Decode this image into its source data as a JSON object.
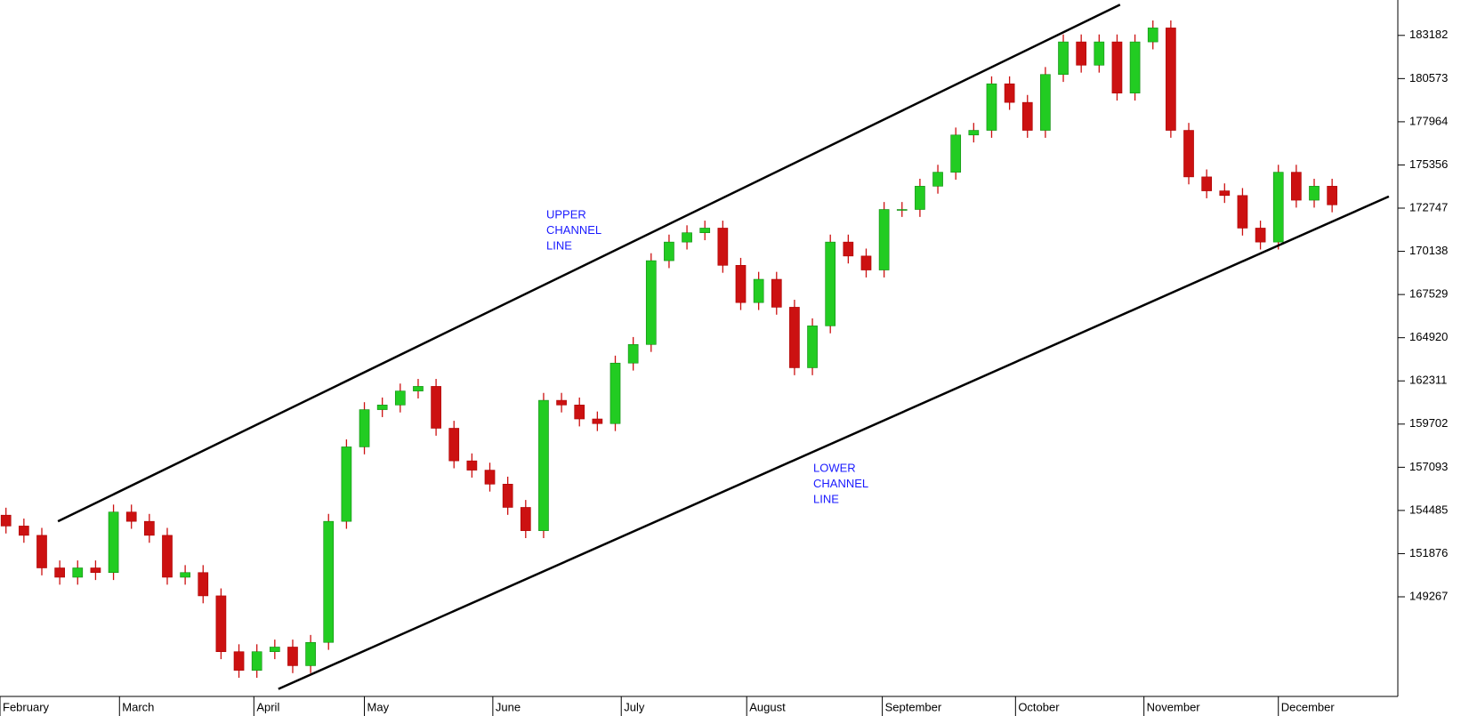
{
  "chart_data": {
    "type": "candlestick",
    "x": [
      1,
      4,
      7,
      10,
      13,
      16,
      19,
      22,
      25,
      28,
      31,
      34,
      37,
      40,
      43,
      46,
      49,
      52,
      55,
      58,
      61,
      64,
      67,
      70,
      73,
      76,
      79,
      82,
      85,
      88,
      91,
      94,
      97,
      100,
      103,
      106,
      109,
      112,
      115,
      118,
      121,
      124,
      127,
      130,
      133,
      136,
      139,
      142,
      145,
      148,
      151,
      154,
      157,
      160,
      163,
      166,
      169,
      172,
      175,
      178,
      181,
      184,
      187,
      190,
      193,
      196,
      199,
      202,
      205,
      208,
      211,
      214,
      217,
      220,
      223
    ],
    "open": [
      154200,
      153544,
      152982,
      151014,
      150451,
      151014,
      150732,
      154388,
      153826,
      152982,
      150451,
      150732,
      149326,
      145952,
      144827,
      145952,
      146233,
      145108,
      146514,
      153826,
      158325,
      160574,
      160856,
      161699,
      161980,
      159450,
      157481,
      156919,
      156075,
      154669,
      153263,
      161137,
      160856,
      160012,
      159731,
      163386,
      164511,
      169573,
      170698,
      171260,
      171541,
      169292,
      167042,
      168448,
      166761,
      163105,
      165636,
      170698,
      169854,
      169010,
      172666,
      172666,
      174072,
      174916,
      177165,
      177446,
      180258,
      179134,
      177446,
      180821,
      182789,
      181383,
      182789,
      179696,
      182789,
      183633,
      177446,
      174634,
      173791,
      173510,
      171541,
      170698,
      174916,
      173228,
      174072
    ],
    "high": [
      154650,
      153994,
      153432,
      151464,
      151464,
      151464,
      154838,
      154838,
      154276,
      153432,
      151182,
      151182,
      149776,
      146402,
      146402,
      146683,
      146683,
      146964,
      154276,
      158775,
      161024,
      161306,
      162149,
      162430,
      162430,
      159900,
      157931,
      157369,
      156525,
      155119,
      161587,
      161587,
      161306,
      160462,
      163836,
      164961,
      170023,
      171148,
      171710,
      171991,
      171991,
      169742,
      168898,
      168898,
      167211,
      166086,
      171148,
      171148,
      170304,
      173116,
      173116,
      174522,
      175366,
      177615,
      177896,
      180708,
      180708,
      179584,
      181271,
      183239,
      183239,
      183239,
      183239,
      183239,
      184083,
      184083,
      177896,
      175084,
      174241,
      173960,
      171991,
      175366,
      175366,
      174522,
      174522
    ],
    "low": [
      153094,
      152532,
      150564,
      150001,
      150001,
      150282,
      150282,
      153376,
      152532,
      150001,
      150001,
      148876,
      145502,
      144377,
      144377,
      145502,
      144658,
      144658,
      146064,
      153376,
      157875,
      160124,
      160406,
      161249,
      159000,
      157031,
      156469,
      155625,
      154219,
      152813,
      152813,
      160406,
      159562,
      159281,
      159281,
      162936,
      164061,
      169123,
      170248,
      170810,
      168842,
      166592,
      166592,
      166311,
      162655,
      162655,
      165186,
      169404,
      168560,
      168560,
      172216,
      172216,
      173622,
      174466,
      176715,
      176996,
      178684,
      176996,
      176996,
      180371,
      180933,
      180933,
      179246,
      179246,
      182339,
      176996,
      174184,
      173341,
      173060,
      171091,
      170248,
      170248,
      172778,
      172778,
      172497
    ],
    "close": [
      153544,
      152982,
      151014,
      150451,
      151014,
      150732,
      154388,
      153826,
      152982,
      150451,
      150732,
      149326,
      145952,
      144827,
      145952,
      146233,
      145108,
      146514,
      153826,
      158325,
      160574,
      160856,
      161699,
      161980,
      159450,
      157481,
      156919,
      156075,
      154669,
      153263,
      161137,
      160856,
      160012,
      159731,
      163386,
      164511,
      169573,
      170698,
      171260,
      171541,
      169292,
      167042,
      168448,
      166761,
      163105,
      165636,
      170698,
      169854,
      169010,
      172666,
      172666,
      174072,
      174916,
      177165,
      177446,
      180258,
      179134,
      177446,
      180821,
      182789,
      181383,
      182789,
      179696,
      182789,
      183633,
      177446,
      174634,
      173791,
      173510,
      171541,
      170698,
      174916,
      173228,
      174072,
      172947
    ],
    "up_color": "#22cc22",
    "down_color": "#cc1111",
    "xlim": [
      0,
      234
    ],
    "xticks": [
      {
        "value": 0,
        "label": "February"
      },
      {
        "value": 20,
        "label": "March"
      },
      {
        "value": 42.5,
        "label": "April"
      },
      {
        "value": 61,
        "label": "May"
      },
      {
        "value": 82.5,
        "label": "June"
      },
      {
        "value": 104,
        "label": "July"
      },
      {
        "value": 125,
        "label": "August"
      },
      {
        "value": 147.7,
        "label": "September"
      },
      {
        "value": 170,
        "label": "October"
      },
      {
        "value": 191.5,
        "label": "November"
      },
      {
        "value": 214,
        "label": "December"
      }
    ],
    "ylim": [
      143250,
      185320
    ],
    "yticks": [
      183182,
      180573,
      177964,
      175356,
      172747,
      170138,
      167529,
      164920,
      162311,
      159702,
      157093,
      154485,
      151876,
      149267
    ],
    "trendlines": [
      {
        "x": [
          9.7,
          187.5
        ],
        "y": [
          153825,
          185038
        ]
      },
      {
        "x": [
          46.6,
          232.5
        ],
        "y": [
          143702,
          173452
        ]
      }
    ],
    "annotations": [
      {
        "lines": [
          "UPPER",
          "CHANNEL",
          "LINE"
        ]
      },
      {
        "lines": [
          "LOWER",
          "CHANNEL",
          "LINE"
        ]
      }
    ]
  }
}
